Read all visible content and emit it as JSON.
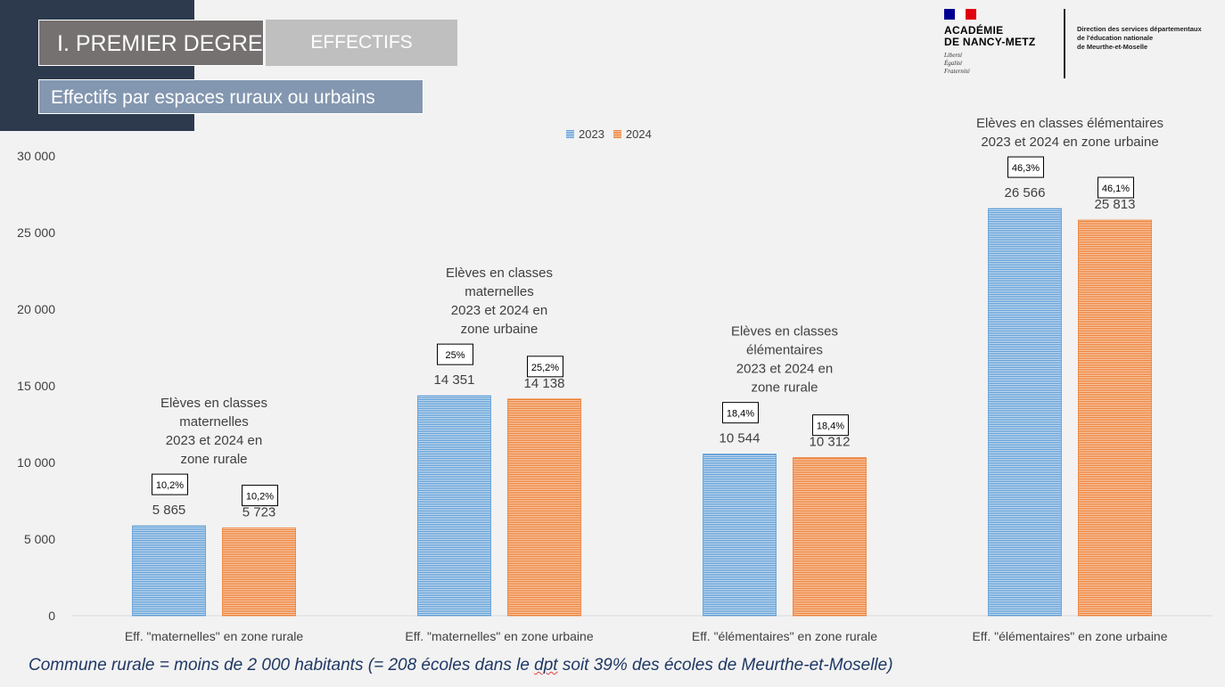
{
  "header": {
    "tab1": "I. PREMIER DEGRE",
    "tab2": "EFFECTIFS",
    "subtitle": "Effectifs par espaces ruraux ou urbains"
  },
  "logo": {
    "name_line1": "ACADÉMIE",
    "name_line2": "DE NANCY-METZ",
    "motto_line1": "Liberté",
    "motto_line2": "Égalité",
    "motto_line3": "Fraternité",
    "direction_line1": "Direction des services départementaux",
    "direction_line2": "de l'éducation nationale",
    "direction_line3": "de Meurthe-et-Moselle"
  },
  "colors": {
    "series_2023": "#5b9bd5",
    "series_2024": "#ed7d31",
    "text": "#404040",
    "footnote": "#1f3864"
  },
  "chart_data": {
    "type": "bar",
    "categories": [
      "Eff. \"maternelles\" en  zone rurale",
      "Eff. \"maternelles\" en  zone urbaine",
      "Eff. \"élémentaires\" en  zone rurale",
      "Eff. \"élémentaires\" en  zone urbaine"
    ],
    "series": [
      {
        "name": "2023",
        "values": [
          5865,
          14351,
          10544,
          26566
        ]
      },
      {
        "name": "2024",
        "values": [
          5723,
          14138,
          10312,
          25813
        ]
      }
    ],
    "value_labels": [
      [
        "5 865",
        "14 351",
        "10 544",
        "26 566"
      ],
      [
        "5 723",
        "14 138",
        "10 312",
        "25 813"
      ]
    ],
    "percent_labels": [
      [
        "10,2%",
        "25%",
        "18,4%",
        "46,3%"
      ],
      [
        "10,2%",
        "25,2%",
        "18,4%",
        "46,1%"
      ]
    ],
    "annotations": [
      [
        "Elèves en classes",
        "maternelles",
        "2023 et 2024 en",
        "zone rurale"
      ],
      [
        "Elèves en classes",
        "maternelles",
        "2023 et 2024 en",
        "zone urbaine"
      ],
      [
        "Elèves en classes",
        "élémentaires",
        "2023 et 2024 en",
        "zone rurale"
      ],
      [
        "Elèves en classes élémentaires",
        "2023 et 2024 en zone urbaine"
      ]
    ],
    "yticks": [
      "0",
      "5 000",
      "10 000",
      "15 000",
      "20 000",
      "25 000",
      "30 000"
    ],
    "ylim": [
      0,
      30000
    ],
    "grid": false,
    "legend_position": "top-center"
  },
  "footnote": {
    "before": "Commune rurale = moins de 2 000 habitants (= 208 écoles dans le ",
    "flagged": "dpt",
    "after": " soit 39% des écoles de Meurthe-et-Moselle)"
  }
}
